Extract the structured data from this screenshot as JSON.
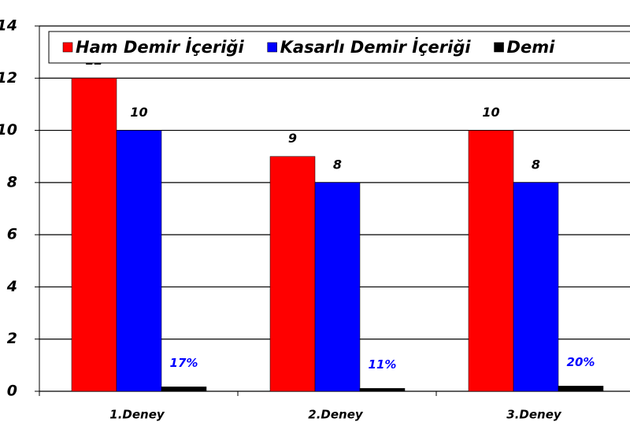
{
  "chart_data": {
    "type": "bar",
    "categories": [
      "1.Deney",
      "2.Deney",
      "3.Deney"
    ],
    "series": [
      {
        "name": "Ham Demir İçeriği",
        "color": "#ff0000",
        "values": [
          12,
          9,
          10
        ]
      },
      {
        "name": "Kasarlı Demir İçeriği",
        "color": "#0000ff",
        "values": [
          10,
          8,
          8
        ]
      },
      {
        "name": "Demi",
        "color": "#000000",
        "values": [
          0.17,
          0.11,
          0.2
        ],
        "value_labels": [
          "17%",
          "11%",
          "20%"
        ]
      }
    ],
    "ylim": [
      0,
      14
    ],
    "yticks": [
      0,
      2,
      4,
      6,
      8,
      10,
      12,
      14
    ],
    "grid": true,
    "legend": "top"
  }
}
